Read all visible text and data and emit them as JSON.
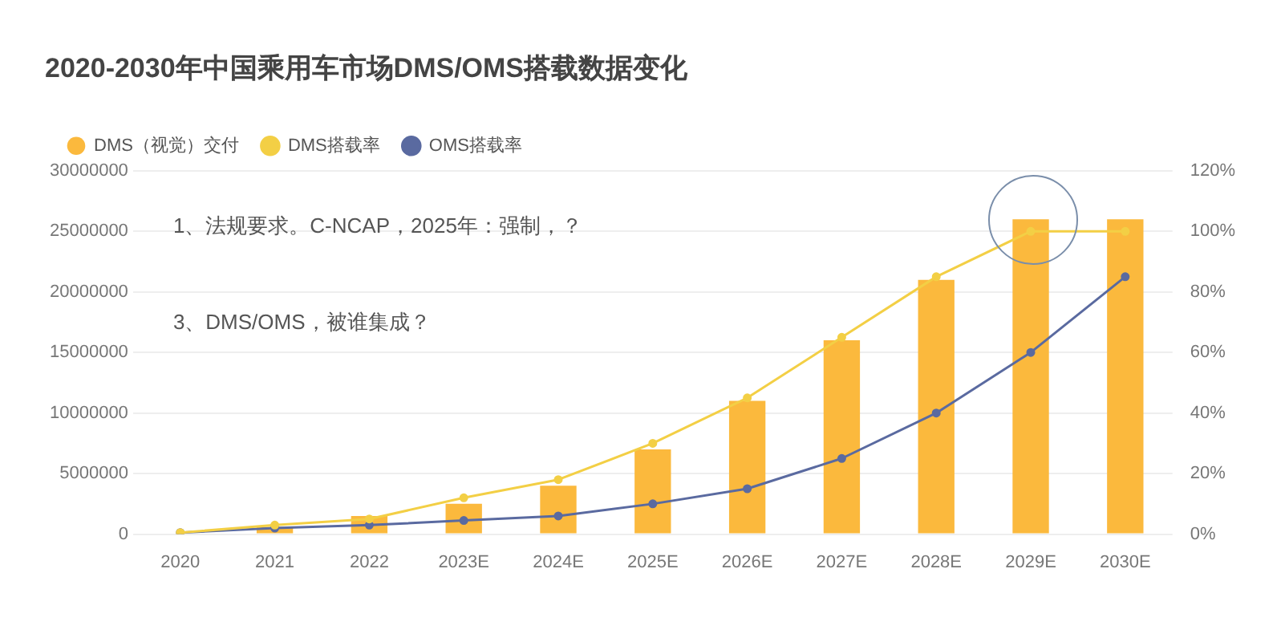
{
  "chart_data": {
    "type": "bar",
    "title": "2020-2030年中国乘用车市场DMS/OMS搭载数据变化",
    "categories": [
      "2020",
      "2021",
      "2022",
      "2023E",
      "2024E",
      "2025E",
      "2026E",
      "2027E",
      "2028E",
      "2029E",
      "2030E"
    ],
    "series": [
      {
        "name": "DMS（视觉）交付",
        "color": "#fbb93d",
        "values": [
          0,
          600000,
          1500000,
          2500000,
          4000000,
          7000000,
          11000000,
          16000000,
          21000000,
          26000000,
          26000000
        ]
      },
      {
        "name": "DMS搭载率",
        "type": "line",
        "axis": "y2",
        "color": "#f3cf45",
        "values": [
          0.5,
          3,
          5,
          12,
          18,
          30,
          45,
          65,
          85,
          100,
          100
        ]
      },
      {
        "name": "OMS搭载率",
        "type": "line",
        "axis": "y2",
        "color": "#5a6aa0",
        "values": [
          0.5,
          2,
          3,
          4.5,
          6,
          10,
          15,
          25,
          40,
          60,
          85
        ]
      }
    ],
    "ylim": [
      0,
      30000000
    ],
    "yticks": [
      0,
      5000000,
      10000000,
      15000000,
      20000000,
      25000000,
      30000000
    ],
    "y2lim": [
      0,
      120
    ],
    "y2ticks": [
      {
        "value": 0,
        "label": "0%"
      },
      {
        "value": 20,
        "label": "20%"
      },
      {
        "value": 40,
        "label": "40%"
      },
      {
        "value": 60,
        "label": "60%"
      },
      {
        "value": 80,
        "label": "80%"
      },
      {
        "value": 100,
        "label": "100%"
      },
      {
        "value": 120,
        "label": "120%"
      }
    ],
    "annotations": [
      "1、法规要求。C-NCAP，2025年：强制，？",
      "3、DMS/OMS，被谁集成？"
    ],
    "grid": "y",
    "legend": "top left",
    "marker": "circle",
    "line_style": "solid"
  }
}
